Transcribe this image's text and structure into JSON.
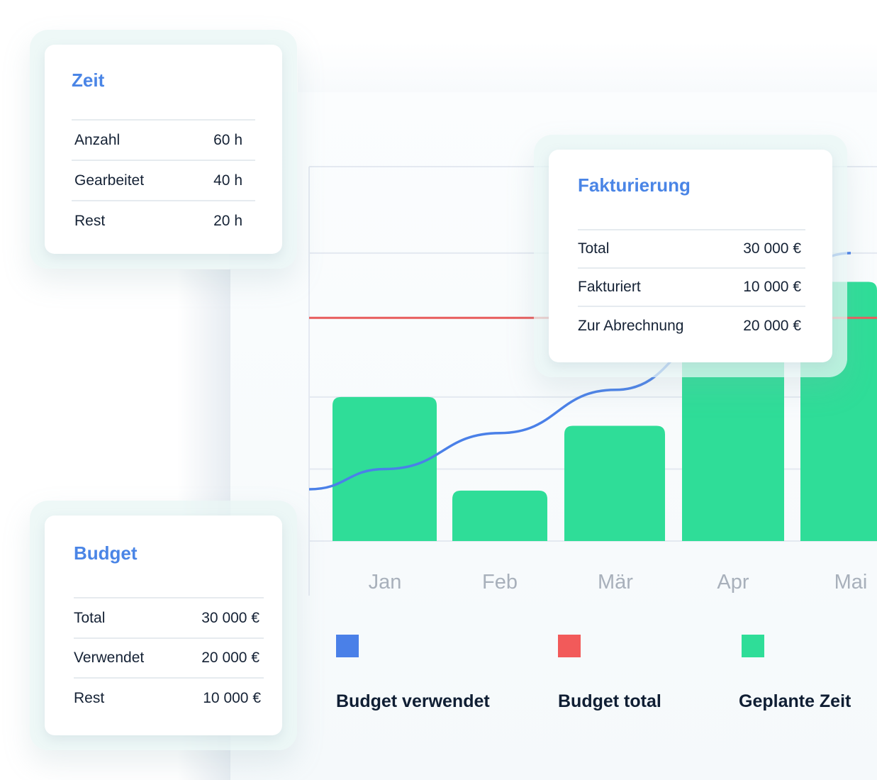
{
  "colors": {
    "bar": "#2fdd98",
    "line_used": "#4a80e8",
    "line_total": "#e85d5d",
    "title": "#4a85e6"
  },
  "chart_data": {
    "type": "bar",
    "categories": [
      "Jan",
      "Feb",
      "Mär",
      "Apr",
      "Mai"
    ],
    "series": [
      {
        "name": "Geplante Zeit",
        "type": "bar",
        "values": [
          20,
          7,
          16,
          38,
          36
        ]
      },
      {
        "name": "Budget verwendet",
        "type": "line",
        "values": [
          10,
          15,
          21,
          30,
          40
        ]
      },
      {
        "name": "Budget total",
        "type": "line",
        "values": [
          31,
          31,
          31,
          31,
          31
        ]
      }
    ],
    "ylim": [
      0,
      52
    ],
    "grid": true,
    "legend_position": "bottom"
  },
  "cards": {
    "zeit": {
      "title": "Zeit",
      "rows": [
        {
          "label": "Anzahl",
          "value": "60 h"
        },
        {
          "label": "Gearbeitet",
          "value": "40 h"
        },
        {
          "label": "Rest",
          "value": "20 h"
        }
      ]
    },
    "fakturierung": {
      "title": "Fakturierung",
      "rows": [
        {
          "label": "Total",
          "value": "30 000 €"
        },
        {
          "label": "Fakturiert",
          "value": "10 000 €"
        },
        {
          "label": "Zur Abrechnung",
          "value": "20 000 €"
        }
      ]
    },
    "budget": {
      "title": "Budget",
      "rows": [
        {
          "label": "Total",
          "value": "30 000 €"
        },
        {
          "label": "Verwendet",
          "value": "20 000 €"
        },
        {
          "label": "Rest",
          "value": "10 000 €"
        }
      ]
    }
  },
  "legend": [
    {
      "label": "Budget verwendet",
      "color": "#4a80e8"
    },
    {
      "label": "Budget total",
      "color": "#f25a5a"
    },
    {
      "label": "Geplante Zeit",
      "color": "#2fdd98"
    }
  ]
}
